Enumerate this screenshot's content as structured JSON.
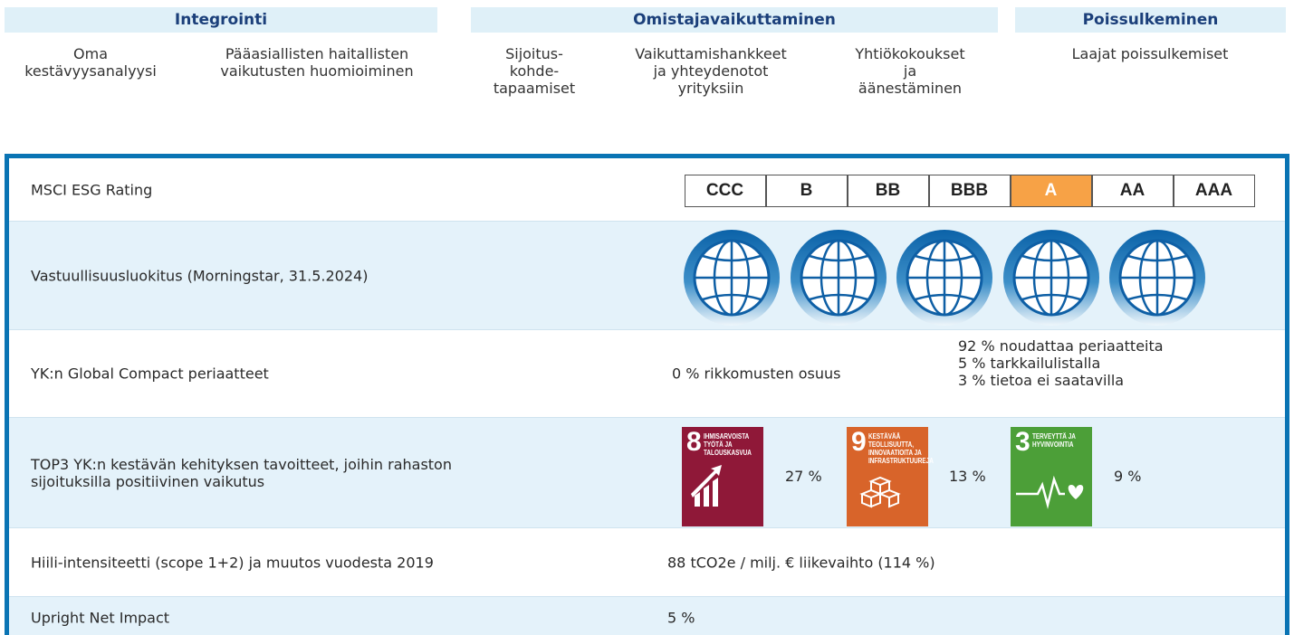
{
  "header": {
    "groups": [
      {
        "title": "Integrointi",
        "items": [
          [
            "Oma",
            "kestävyysanalyysi"
          ],
          [
            "Pääasiallisten haitallisten",
            "vaikutusten huomioiminen"
          ]
        ]
      },
      {
        "title": "Omistajavaikuttaminen",
        "items": [
          [
            "Sijoitus-",
            "kohde-",
            "tapaamiset"
          ],
          [
            "Vaikuttamishankkeet",
            "ja yhteydenotot",
            "yrityksiin"
          ],
          [
            "Yhtiökokoukset",
            "ja",
            "äänestäminen"
          ]
        ]
      },
      {
        "title": "Poissulkeminen",
        "items": [
          [
            "Laajat poissulkemiset"
          ]
        ]
      }
    ]
  },
  "table": {
    "rows": [
      {
        "label": [
          "MSCI ESG Rating"
        ],
        "ratings": [
          "CCC",
          "B",
          "BB",
          "BBB",
          "A",
          "AA",
          "AAA"
        ],
        "selected": "A"
      },
      {
        "label": [
          "Vastuullisuusluokitus (Morningstar, 31.5.2024)"
        ],
        "globes": 5
      },
      {
        "label": [
          "YK:n Global Compact periaatteet"
        ],
        "value": "0 % rikkomusten osuus",
        "details": [
          "92 % noudattaa periaatteita",
          "5 % tarkkailulistalla",
          "3 % tietoa ei saatavilla"
        ]
      },
      {
        "label": [
          "TOP3 YK:n kestävän kehityksen tavoitteet, joihin rahaston",
          "sijoituksilla positiivinen vaikutus"
        ],
        "goals": [
          {
            "number": 8,
            "title": [
              "IHMISARVOISTA",
              "TYÖTÄ JA",
              "TALOUSKASVUA"
            ],
            "color": "#8f1838",
            "share": "27 %"
          },
          {
            "number": 9,
            "title": [
              "KESTÄVÄÄ",
              "TEOLLISUUTTA,",
              "INNOVAATIOITA JA",
              "INFRASTRUKTUUREJA"
            ],
            "color": "#d8642a",
            "share": "13 %"
          },
          {
            "number": 3,
            "title": [
              "TERVEYTTÄ JA",
              "HYVINVOINTIA"
            ],
            "color": "#4c9f38",
            "share": "9 %"
          }
        ]
      },
      {
        "label": [
          "Hiili-intensiteetti (scope 1+2) ja muutos vuodesta 2019"
        ],
        "value": "88 tCO2e / milj. € liikevaihto (114 %)"
      },
      {
        "label": [
          "Upright Net Impact"
        ],
        "value": "5 %"
      }
    ]
  }
}
